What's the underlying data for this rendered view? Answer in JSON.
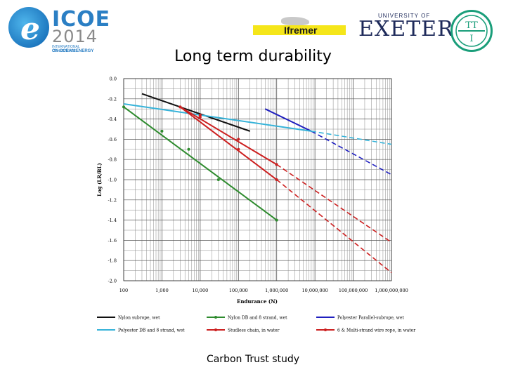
{
  "header": {
    "icoe": {
      "title": "ICOE",
      "year": "2014",
      "sub1": "INTERNATIONAL CONFERENCE",
      "sub2": "ON OCEAN ENERGY",
      "icon_letter": "e"
    },
    "ifremer": {
      "text": "Ifremer"
    },
    "exeter": {
      "top": "UNIVERSITY OF",
      "main": "EXETER"
    },
    "tti": {
      "name": "TTI"
    }
  },
  "slide_title": "Long term durability",
  "caption": "Carbon Trust study",
  "colors": {
    "nylon_sub": "#111111",
    "nylon_db": "#2e8b2e",
    "poly_parallel": "#1f1fbf",
    "poly_db": "#36b3d9",
    "studless": "#cc1f1f",
    "wire": "#cc1f1f"
  },
  "chart_data": {
    "type": "line",
    "title": "",
    "xlabel": "Endurance (N)",
    "ylabel": "Log (LR/BL)",
    "x_scale": "log",
    "xlim": [
      100,
      1000000000
    ],
    "ylim": [
      -2.0,
      0.0
    ],
    "x_ticks": [
      "100",
      "1,000",
      "10,000",
      "100,000",
      "1,000,000",
      "10,000,000",
      "100,000,000",
      "1,000,000,000"
    ],
    "y_ticks": [
      "0.0",
      "-0.2",
      "-0.4",
      "-0.6",
      "-0.8",
      "-1.0",
      "-1.2",
      "-1.4",
      "-1.6",
      "-1.8",
      "-2.0"
    ],
    "grid": true,
    "series": [
      {
        "name": "Nylon subrope, wet",
        "color": "#111111",
        "marker": false,
        "points": [
          [
            300,
            -0.15
          ],
          [
            200000,
            -0.52
          ]
        ],
        "extrapolated": []
      },
      {
        "name": "Nylon DB  and 8 strand, wet",
        "color": "#2e8b2e",
        "marker": true,
        "points": [
          [
            100,
            -0.28
          ],
          [
            1000000,
            -1.4
          ]
        ],
        "markers": [
          [
            100,
            -0.28
          ],
          [
            1000,
            -0.52
          ],
          [
            5000,
            -0.7
          ],
          [
            30000,
            -1.0
          ],
          [
            1000000,
            -1.4
          ]
        ],
        "extrapolated": []
      },
      {
        "name": "Polyester Parallel-subrope, wet",
        "color": "#1f1fbf",
        "marker": false,
        "points": [
          [
            500000,
            -0.3
          ],
          [
            8000000,
            -0.52
          ]
        ],
        "extrapolated": [
          [
            8000000,
            -0.52
          ],
          [
            1000000000,
            -0.95
          ]
        ]
      },
      {
        "name": "Polyester DB  and 8 strand, wet",
        "color": "#36b3d9",
        "marker": false,
        "points": [
          [
            100,
            -0.25
          ],
          [
            8000000,
            -0.52
          ]
        ],
        "extrapolated": [
          [
            8000000,
            -0.52
          ],
          [
            1000000000,
            -0.65
          ]
        ]
      },
      {
        "name": "Studless chain, in water",
        "color": "#cc1f1f",
        "marker": true,
        "points": [
          [
            3000,
            -0.28
          ],
          [
            1000000,
            -1.0
          ]
        ],
        "markers": [
          [
            3000,
            -0.28
          ],
          [
            10000,
            -0.38
          ],
          [
            100000,
            -0.7
          ],
          [
            1000000,
            -1.0
          ]
        ],
        "extrapolated": [
          [
            1000000,
            -1.0
          ],
          [
            1000000000,
            -1.92
          ]
        ]
      },
      {
        "name": "6 & Multi-strand wire rope, in water",
        "color": "#cc1f1f",
        "marker": true,
        "points": [
          [
            3000,
            -0.28
          ],
          [
            1000000,
            -0.85
          ]
        ],
        "markers": [
          [
            3000,
            -0.28
          ],
          [
            10000,
            -0.36
          ],
          [
            100000,
            -0.6
          ],
          [
            1000000,
            -0.85
          ]
        ],
        "extrapolated": [
          [
            1000000,
            -0.85
          ],
          [
            1000000000,
            -1.62
          ]
        ]
      }
    ]
  }
}
